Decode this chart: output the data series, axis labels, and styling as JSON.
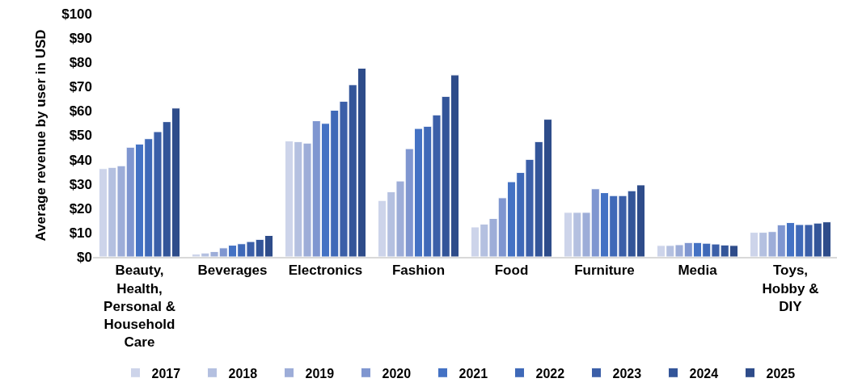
{
  "chart_data": {
    "type": "bar",
    "ylabel": "Average revenue by user in USD",
    "categories": [
      "Beauty, Health, Personal & Household Care",
      "Beverages",
      "Electronics",
      "Fashion",
      "Food",
      "Furniture",
      "Media",
      "Toys, Hobby & DIY"
    ],
    "series": [
      {
        "name": "2017",
        "color": "#cdd4ea",
        "values": [
          36.3,
          1.2,
          47.7,
          23.2,
          12.3,
          18.3,
          4.7,
          10.1
        ]
      },
      {
        "name": "2018",
        "color": "#b4c0e0",
        "values": [
          36.8,
          1.6,
          47.4,
          26.8,
          13.5,
          18.3,
          4.7,
          10.1
        ]
      },
      {
        "name": "2019",
        "color": "#9dadd8",
        "values": [
          37.5,
          2.2,
          46.8,
          31.2,
          15.8,
          18.3,
          5.0,
          10.4
        ]
      },
      {
        "name": "2020",
        "color": "#7f96d0",
        "values": [
          45.1,
          3.7,
          56.0,
          44.5,
          24.3,
          28.0,
          5.9,
          13.2
        ]
      },
      {
        "name": "2021",
        "color": "#4472c4",
        "values": [
          46.4,
          4.8,
          54.9,
          52.8,
          30.9,
          26.4,
          5.9,
          14.1
        ]
      },
      {
        "name": "2022",
        "color": "#3f69b8",
        "values": [
          48.6,
          5.4,
          60.3,
          53.7,
          34.7,
          25.2,
          5.6,
          13.3
        ]
      },
      {
        "name": "2023",
        "color": "#3b5fa8",
        "values": [
          51.5,
          6.3,
          64.0,
          58.4,
          40.1,
          25.2,
          5.3,
          13.3
        ]
      },
      {
        "name": "2024",
        "color": "#335599",
        "values": [
          55.6,
          7.2,
          70.8,
          66.0,
          47.4,
          27.2,
          4.9,
          13.9
        ]
      },
      {
        "name": "2025",
        "color": "#2e4c8a",
        "values": [
          61.2,
          8.8,
          77.6,
          74.8,
          56.6,
          29.6,
          4.7,
          14.4
        ]
      }
    ],
    "ylim": [
      0,
      100
    ],
    "yticks": [
      {
        "value": 0,
        "label": "$0"
      },
      {
        "value": 10,
        "label": "$10"
      },
      {
        "value": 20,
        "label": "$20"
      },
      {
        "value": 30,
        "label": "$30"
      },
      {
        "value": 40,
        "label": "$40"
      },
      {
        "value": 50,
        "label": "$50"
      },
      {
        "value": 60,
        "label": "$60"
      },
      {
        "value": 70,
        "label": "$70"
      },
      {
        "value": 80,
        "label": "$80"
      },
      {
        "value": 90,
        "label": "$90"
      },
      {
        "value": 100,
        "label": "$100"
      }
    ],
    "legend": "bottom"
  }
}
